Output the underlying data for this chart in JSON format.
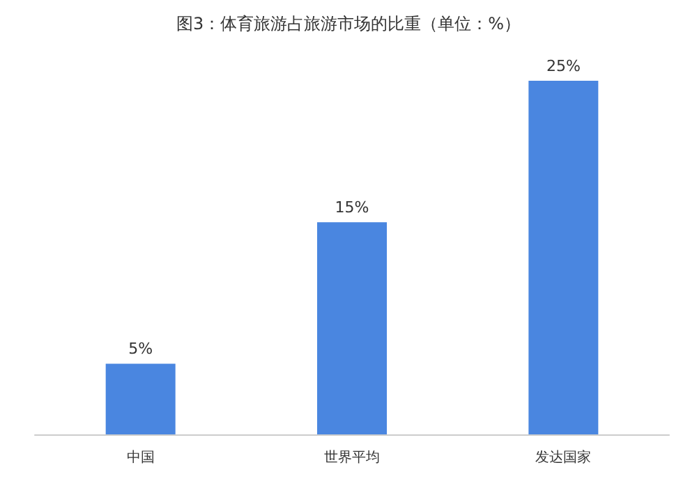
{
  "chart_data": {
    "type": "bar",
    "title": "图3：体育旅游占旅游市场的比重（单位：%）",
    "categories": [
      "中国",
      "世界平均",
      "发达国家"
    ],
    "values": [
      5,
      15,
      25
    ],
    "value_labels": [
      "5%",
      "15%",
      "25%"
    ],
    "color": "#4a86e0"
  }
}
